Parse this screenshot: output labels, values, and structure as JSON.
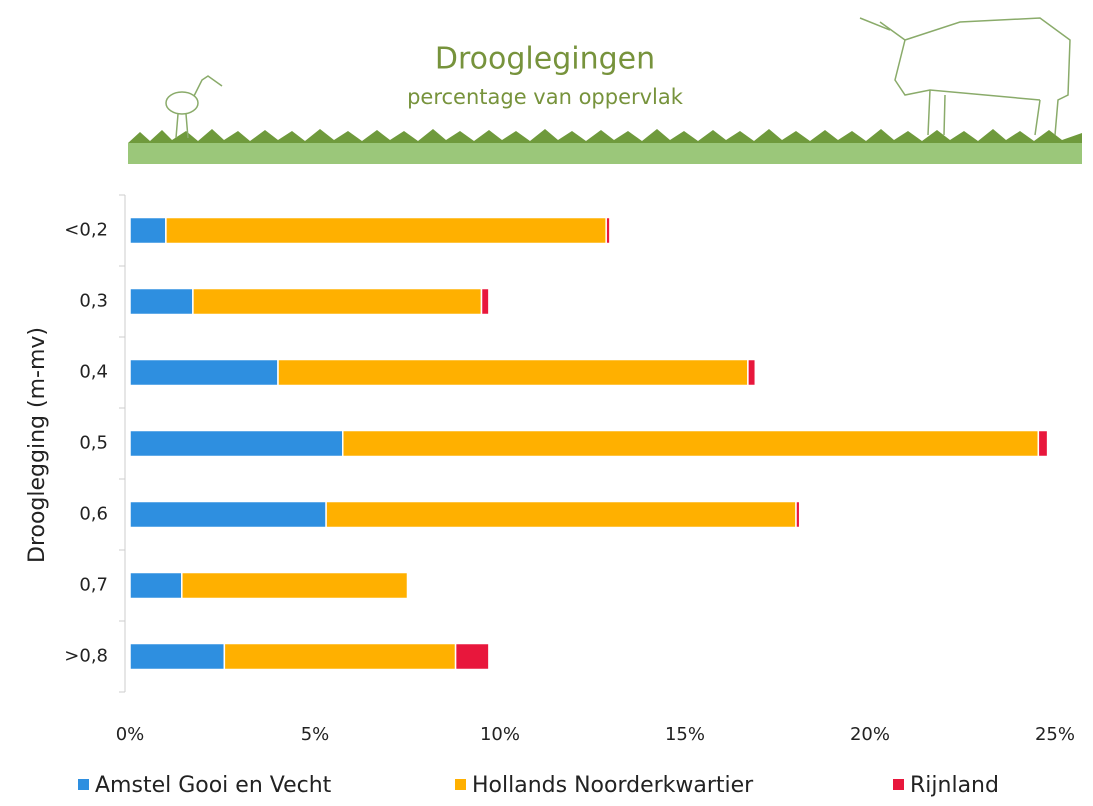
{
  "chart_data": {
    "type": "stacked-bar-horizontal",
    "title": "Drooglegingen",
    "subtitle": "percentage van oppervlak",
    "y_axis_label": "Drooglegging (m-mv)",
    "categories": [
      "<0,2",
      "0,3",
      "0,4",
      "0,5",
      "0,6",
      "0,7",
      ">0,8"
    ],
    "series": [
      {
        "name": "Amstel Gooi en Vecht",
        "color": "#2e8fe0",
        "values": [
          0.97,
          1.7,
          4.0,
          5.75,
          5.3,
          1.4,
          2.55
        ]
      },
      {
        "name": "Hollands Noorderkwartier",
        "color": "#ffb000",
        "values": [
          11.9,
          7.8,
          12.7,
          18.8,
          12.7,
          6.1,
          6.25
        ]
      },
      {
        "name": "Rijnland",
        "color": "#e8173c",
        "values": [
          0.1,
          0.2,
          0.2,
          0.25,
          0.1,
          0,
          0.9
        ]
      }
    ],
    "xlim": [
      0,
      25
    ],
    "xticks": [
      {
        "value": 0,
        "label": "0%"
      },
      {
        "value": 5,
        "label": "5%"
      },
      {
        "value": 10,
        "label": "10%"
      },
      {
        "value": 15,
        "label": "15%"
      },
      {
        "value": 20,
        "label": "20%"
      },
      {
        "value": 25,
        "label": "25%"
      }
    ],
    "legend": "bottom"
  }
}
